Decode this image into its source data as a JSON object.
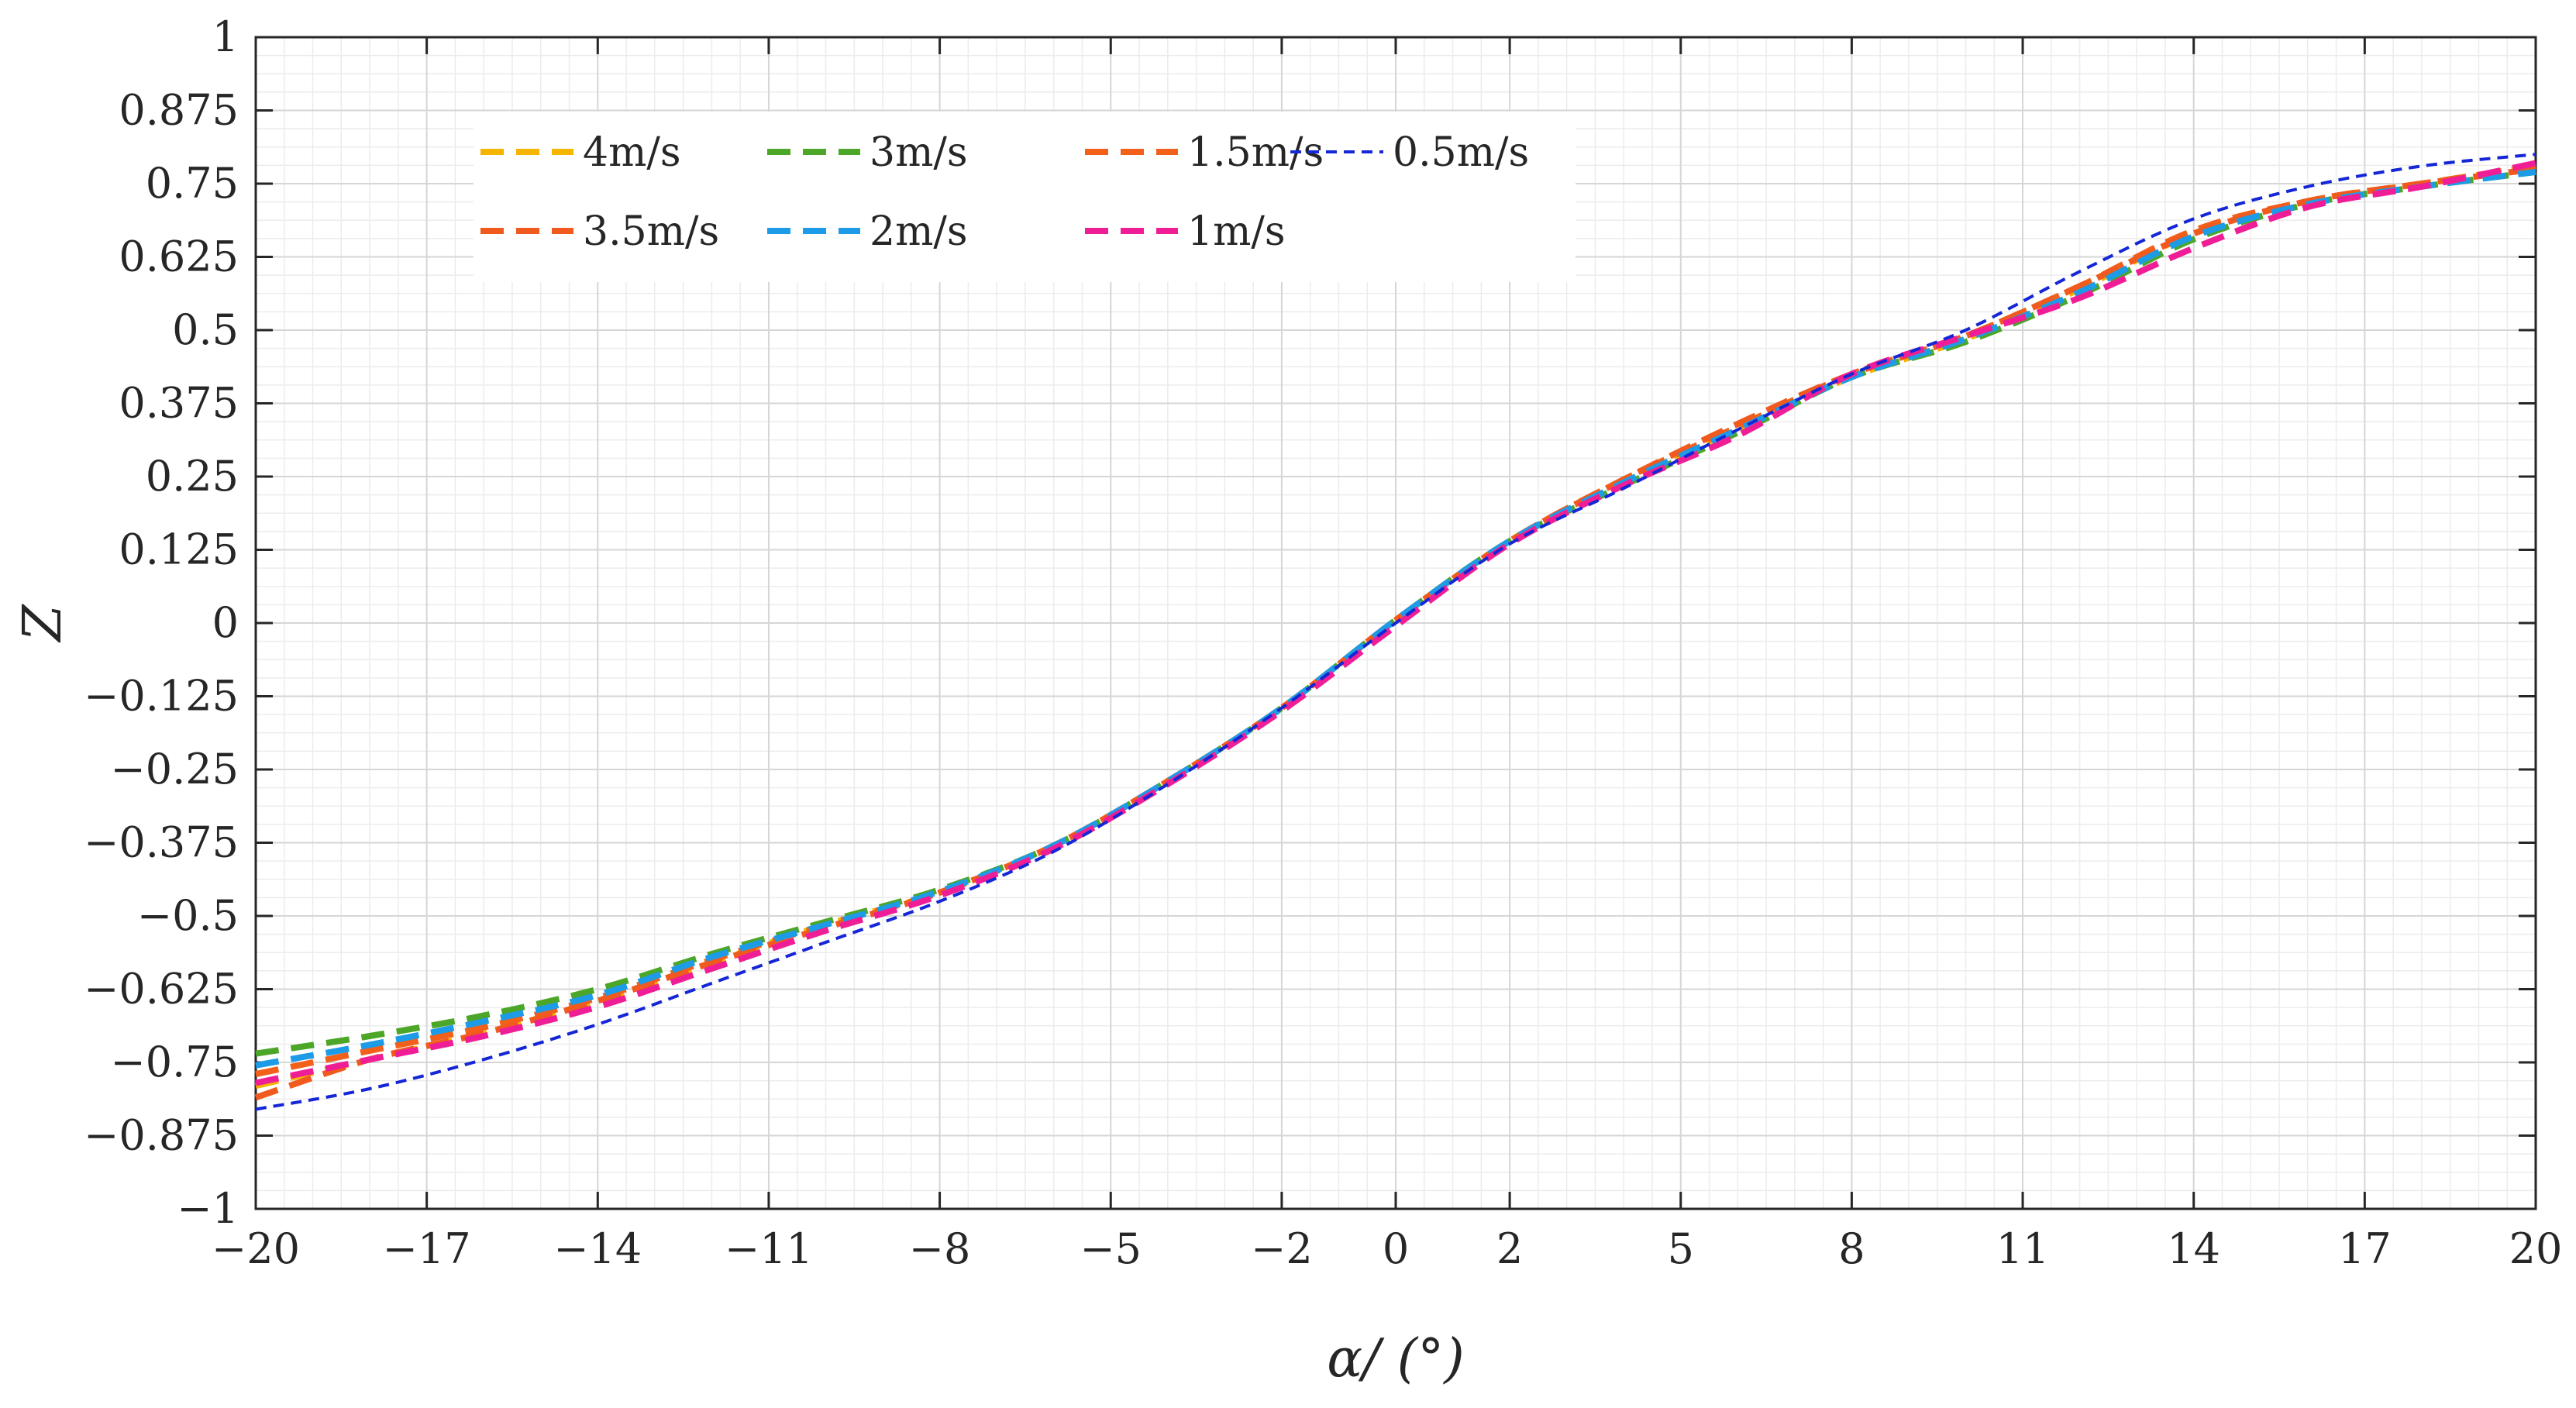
{
  "chart_data": {
    "type": "line",
    "title": "",
    "xlabel": "α/ (°)",
    "ylabel": "Z",
    "xlim": [
      -20,
      20
    ],
    "ylim": [
      -1,
      1
    ],
    "x_ticks": [
      -20,
      -17,
      -14,
      -11,
      -8,
      -5,
      -2,
      0,
      2,
      5,
      8,
      11,
      14,
      17,
      20
    ],
    "x_tick_labels": [
      "−20",
      "−17",
      "−14",
      "−11",
      "−8",
      "−5",
      "−2",
      "0",
      "2",
      "5",
      "8",
      "11",
      "14",
      "17",
      "20"
    ],
    "y_ticks": [
      1,
      0.875,
      0.75,
      0.625,
      0.5,
      0.375,
      0.25,
      0.125,
      0,
      -0.125,
      -0.25,
      -0.375,
      -0.5,
      -0.625,
      -0.75,
      -0.875,
      -1
    ],
    "y_tick_labels": [
      "1",
      "0.875",
      "0.75",
      "0.625",
      "0.5",
      "0.375",
      "0.25",
      "0.125",
      "0",
      "−0.125",
      "−0.25",
      "−0.375",
      "−0.5",
      "−0.625",
      "−0.75",
      "−0.875",
      "−1"
    ],
    "grid": true,
    "minor_grid": true,
    "legend_position": "top-left",
    "series": [
      {
        "name": "4m/s",
        "color": "#F5B400",
        "dash": "long",
        "x": [
          -20,
          -18,
          -16,
          -14,
          -12,
          -10,
          -8,
          -6,
          -4,
          -2,
          0,
          2,
          4,
          6,
          8,
          10,
          12,
          14,
          16,
          18,
          20
        ],
        "y": [
          -0.79,
          -0.745,
          -0.7,
          -0.645,
          -0.58,
          -0.515,
          -0.46,
          -0.38,
          -0.27,
          -0.145,
          0.005,
          0.14,
          0.24,
          0.33,
          0.42,
          0.485,
          0.57,
          0.665,
          0.72,
          0.75,
          0.78
        ]
      },
      {
        "name": "3m/s",
        "color": "#4CA628",
        "dash": "long",
        "x": [
          -20,
          -18,
          -16,
          -14,
          -12,
          -10,
          -8,
          -6,
          -4,
          -2,
          0,
          2,
          4,
          6,
          8,
          10,
          12,
          14,
          16,
          18,
          20
        ],
        "y": [
          -0.735,
          -0.705,
          -0.67,
          -0.625,
          -0.565,
          -0.51,
          -0.455,
          -0.38,
          -0.27,
          -0.145,
          0.005,
          0.14,
          0.235,
          0.325,
          0.42,
          0.48,
          0.56,
          0.655,
          0.715,
          0.745,
          0.77
        ]
      },
      {
        "name": "1.5m/s",
        "color": "#F2601A",
        "dash": "long",
        "x": [
          -20,
          -18,
          -16,
          -14,
          -12,
          -10,
          -8,
          -6,
          -4,
          -2,
          0,
          2,
          4,
          6,
          8,
          10,
          12,
          14,
          16,
          18,
          20
        ],
        "y": [
          -0.77,
          -0.73,
          -0.69,
          -0.64,
          -0.575,
          -0.515,
          -0.46,
          -0.38,
          -0.27,
          -0.145,
          0.005,
          0.14,
          0.245,
          0.335,
          0.425,
          0.49,
          0.575,
          0.67,
          0.72,
          0.75,
          0.78
        ]
      },
      {
        "name": "0.5m/s",
        "color": "#1426D6",
        "dash": "short",
        "x": [
          -20,
          -18,
          -16,
          -14,
          -12,
          -10,
          -8,
          -6,
          -4,
          -2,
          0,
          2,
          4,
          6,
          8,
          10,
          12,
          14,
          16,
          18,
          20
        ],
        "y": [
          -0.83,
          -0.795,
          -0.745,
          -0.685,
          -0.615,
          -0.545,
          -0.475,
          -0.39,
          -0.275,
          -0.145,
          0.0,
          0.135,
          0.23,
          0.33,
          0.425,
          0.5,
          0.6,
          0.69,
          0.745,
          0.78,
          0.8
        ]
      },
      {
        "name": "3.5m/s",
        "color": "#F05A1E",
        "dash": "long",
        "x": [
          -20,
          -18,
          -16,
          -14,
          -12,
          -10,
          -8,
          -6,
          -4,
          -2,
          0,
          2,
          4,
          6,
          8,
          10,
          12,
          14,
          16,
          18,
          20
        ],
        "y": [
          -0.81,
          -0.745,
          -0.7,
          -0.645,
          -0.58,
          -0.52,
          -0.46,
          -0.38,
          -0.27,
          -0.145,
          0.005,
          0.14,
          0.245,
          0.34,
          0.425,
          0.49,
          0.575,
          0.665,
          0.72,
          0.75,
          0.775
        ]
      },
      {
        "name": "2m/s",
        "color": "#1E9BE6",
        "dash": "long",
        "x": [
          -20,
          -18,
          -16,
          -14,
          -12,
          -10,
          -8,
          -6,
          -4,
          -2,
          0,
          2,
          4,
          6,
          8,
          10,
          12,
          14,
          16,
          18,
          20
        ],
        "y": [
          -0.755,
          -0.72,
          -0.68,
          -0.635,
          -0.57,
          -0.515,
          -0.458,
          -0.38,
          -0.27,
          -0.145,
          0.005,
          0.14,
          0.24,
          0.33,
          0.42,
          0.485,
          0.565,
          0.66,
          0.715,
          0.745,
          0.77
        ]
      },
      {
        "name": "1m/s",
        "color": "#F01E96",
        "dash": "long",
        "x": [
          -20,
          -18,
          -16,
          -14,
          -12,
          -10,
          -8,
          -6,
          -4,
          -2,
          0,
          2,
          4,
          6,
          8,
          10,
          12,
          14,
          16,
          18,
          20
        ],
        "y": [
          -0.785,
          -0.745,
          -0.705,
          -0.655,
          -0.59,
          -0.525,
          -0.465,
          -0.385,
          -0.275,
          -0.15,
          -0.005,
          0.135,
          0.235,
          0.32,
          0.425,
          0.49,
          0.555,
          0.64,
          0.71,
          0.745,
          0.785
        ]
      }
    ]
  }
}
